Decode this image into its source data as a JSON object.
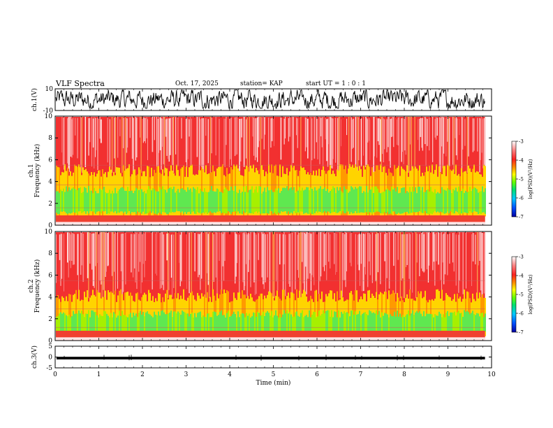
{
  "header": {
    "title": "VLF Spectra",
    "date": "Oct. 17, 2025",
    "station": "station= KAP",
    "start_ut": "start  UT =  1 : 0  : 1"
  },
  "chart_data": [
    {
      "id": "waveform-ch1",
      "type": "line",
      "ylabel": "ch.1(V)",
      "ylim": [
        -10,
        10
      ],
      "yticks": [
        {
          "v": 10,
          "label": "10"
        },
        {
          "v": -10,
          "label": "-10"
        }
      ],
      "xlim": [
        0,
        10
      ],
      "x_end": 9.85,
      "description_range": [
        -8,
        9
      ]
    },
    {
      "id": "spectrogram-ch1",
      "type": "heatmap",
      "ylabel": "ch.1",
      "ylabel2": "Frequency  (kHz)",
      "ylim": [
        0,
        10
      ],
      "yticks": [
        0,
        2,
        4,
        6,
        8,
        10
      ],
      "xlim": [
        0,
        10
      ],
      "x_end": 9.85,
      "green_band_khz": [
        1.0,
        3.6
      ],
      "yellow_top_khz": 4.8,
      "colorbar": {
        "label": "log(PSD)(V²/Hz)",
        "range": [
          -7,
          -3
        ],
        "ticks": [
          -3,
          -4,
          -5,
          -6,
          -7
        ],
        "colors": [
          "#0000a0",
          "#0050ff",
          "#00c8ff",
          "#00e070",
          "#66ff00",
          "#ffff00",
          "#ff8800",
          "#ff2020",
          "#ff8080",
          "#ffffff"
        ]
      }
    },
    {
      "id": "spectrogram-ch2",
      "type": "heatmap",
      "ylabel": "ch.2",
      "ylabel2": "Frequency  (kHz)",
      "ylim": [
        0,
        10
      ],
      "yticks": [
        0,
        2,
        4,
        6,
        8,
        10
      ],
      "xlim": [
        0,
        10
      ],
      "x_end": 9.85,
      "green_band_khz": [
        0.6,
        2.8
      ],
      "yellow_top_khz": 3.9,
      "colorbar": {
        "label": "log(PSD)(V²/Hz)",
        "range": [
          -7,
          -3
        ],
        "ticks": [
          -3,
          -4,
          -5,
          -6,
          -7
        ],
        "colors": [
          "#0000a0",
          "#0050ff",
          "#00c8ff",
          "#00e070",
          "#66ff00",
          "#ffff00",
          "#ff8800",
          "#ff2020",
          "#ff8080",
          "#ffffff"
        ]
      }
    },
    {
      "id": "waveform-ch3",
      "type": "line",
      "ylabel": "ch.3(V)",
      "ylim": [
        -5,
        5
      ],
      "yticks": [
        {
          "v": 5,
          "label": "5"
        },
        {
          "v": 0,
          "label": "0"
        },
        {
          "v": -5,
          "label": "-5"
        }
      ],
      "xlim": [
        0,
        10
      ],
      "x_end": 9.85,
      "level": -0.5,
      "band_halfwidth": 0.6
    }
  ],
  "xaxis": {
    "label": "Time  (min)",
    "ticks": [
      0,
      1,
      2,
      3,
      4,
      5,
      6,
      7,
      8,
      9,
      10
    ]
  }
}
